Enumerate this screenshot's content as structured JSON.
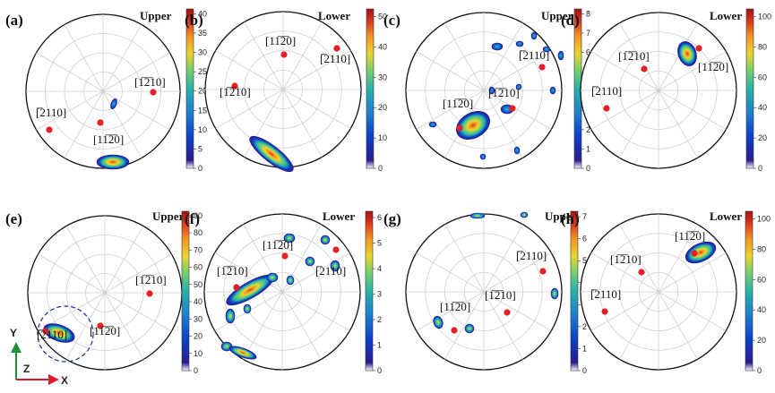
{
  "colormap": [
    "#ffffff",
    "#2d1a8c",
    "#0b42c9",
    "#1f7fd0",
    "#27b3a8",
    "#7ed06a",
    "#e9d52e",
    "#f39a25",
    "#db3a1d",
    "#a0121a"
  ],
  "marker_color": "#e81e25",
  "panels": [
    {
      "label": "(a)",
      "position": "Upper",
      "colorbar": {
        "max": 42,
        "ticks": [
          0,
          5,
          10,
          15,
          20,
          25,
          30,
          35,
          40
        ]
      },
      "directions": [
        {
          "text": "[1̅2̅10]",
          "short": "[1210]"
        }
      ]
    }
  ],
  "plots": {
    "a": {
      "label": "(a)",
      "position": "Upper",
      "ticks": [
        "0",
        "5",
        "10",
        "15",
        "20",
        "25",
        "30",
        "35",
        "40"
      ],
      "dirs": [
        "[1̅2̅10]",
        "[̅2110]",
        "[11̅2̅0]"
      ]
    },
    "b": {
      "label": "(b)",
      "position": "Lower",
      "ticks": [
        "0",
        "10",
        "20",
        "30",
        "40",
        "50"
      ],
      "dirs": [
        "[11̅2̅0]",
        "[1̅2̅10]",
        "[̅2110]"
      ]
    },
    "c": {
      "label": "(c)",
      "position": "Upper",
      "ticks": [
        "0",
        "1",
        "2",
        "3",
        "4",
        "5",
        "6",
        "7",
        "8"
      ],
      "dirs": [
        "[̅2110]",
        "[1̅2̅10]",
        "[11̅2̅0]"
      ]
    },
    "d": {
      "label": "(d)",
      "position": "Lower",
      "ticks": [
        "0",
        "20",
        "40",
        "60",
        "80",
        "100"
      ],
      "dirs": [
        "[1̅2̅10]",
        "[11̅2̅0]",
        "[̅2110]"
      ]
    },
    "e": {
      "label": "(e)",
      "position": "Upper",
      "ticks": [
        "0",
        "10",
        "20",
        "30",
        "40",
        "50",
        "60",
        "70",
        "80",
        "90"
      ],
      "dirs": [
        "[1̅2̅10]",
        "[̅2110]",
        "[11̅2̅0]"
      ]
    },
    "f": {
      "label": "(f)",
      "position": "Lower",
      "ticks": [
        "0",
        "1",
        "2",
        "3",
        "4",
        "5",
        "6"
      ],
      "dirs": [
        "[11̅2̅0]",
        "[1̅2̅10]",
        "[̅2110]"
      ]
    },
    "g": {
      "label": "(g)",
      "position": "Upper",
      "ticks": [
        "0",
        "1",
        "2",
        "3",
        "4",
        "5",
        "6",
        "7"
      ],
      "dirs": [
        "[̅2110]",
        "[1̅2̅10]",
        "[11̅2̅0]"
      ]
    },
    "h": {
      "label": "(h)",
      "position": "Lower",
      "ticks": [
        "0",
        "20",
        "40",
        "60",
        "80",
        "100"
      ],
      "dirs": [
        "[11̅2̅0]",
        "[1̅2̅10]",
        "[̅2110]"
      ]
    }
  },
  "axes": {
    "y": "Y",
    "z": "Z",
    "x": "X"
  }
}
